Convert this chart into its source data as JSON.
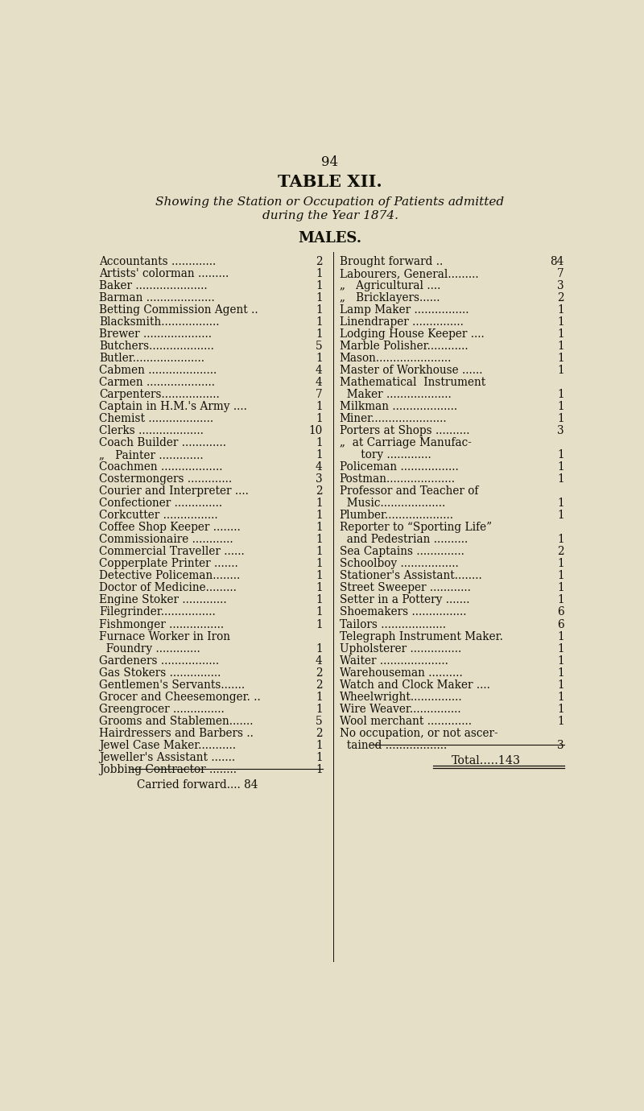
{
  "page_number": "94",
  "title": "TABLE XII.",
  "subtitle_line1": "Showing the Station or Occupation of Patients admitted",
  "subtitle_line2": "during the Year 1874.",
  "section": "MALES.",
  "bg_color": "#e6dfc8",
  "text_color": "#111008",
  "left_column": [
    [
      "Accountants .............",
      "2"
    ],
    [
      "Artists' colorman .........",
      "1"
    ],
    [
      "Baker .....................",
      "1"
    ],
    [
      "Barman ....................",
      "1"
    ],
    [
      "Betting Commission Agent ..",
      "1"
    ],
    [
      "Blacksmith.................",
      "1"
    ],
    [
      "Brewer ....................",
      "1"
    ],
    [
      "Butchers...................",
      "5"
    ],
    [
      "Butler.....................",
      "1"
    ],
    [
      "Cabmen ....................",
      "4"
    ],
    [
      "Carmen ....................",
      "4"
    ],
    [
      "Carpenters.................",
      "7"
    ],
    [
      "Captain in H.M.'s Army ....",
      "1"
    ],
    [
      "Chemist ...................",
      "1"
    ],
    [
      "Clerks ................... ",
      "10"
    ],
    [
      "Coach Builder .............",
      "1"
    ],
    [
      "„   Painter .............",
      "1"
    ],
    [
      "Coachmen ..................",
      "4"
    ],
    [
      "Costermongers .............",
      "3"
    ],
    [
      "Courier and Interpreter ....",
      "2"
    ],
    [
      "Confectioner ..............",
      "1"
    ],
    [
      "Corkcutter ................",
      "1"
    ],
    [
      "Coffee Shop Keeper ........",
      "1"
    ],
    [
      "Commissionaire ............",
      "1"
    ],
    [
      "Commercial Traveller ......",
      "1"
    ],
    [
      "Copperplate Printer .......",
      "1"
    ],
    [
      "Detective Policeman........",
      "1"
    ],
    [
      "Doctor of Medicine.........",
      "1"
    ],
    [
      "Engine Stoker .............",
      "1"
    ],
    [
      "Filegrinder................",
      "1"
    ],
    [
      "Fishmonger ................",
      "1"
    ],
    [
      "Furnace Worker in Iron",
      ""
    ],
    [
      "  Foundry .............",
      "1"
    ],
    [
      "Gardeners .................",
      "4"
    ],
    [
      "Gas Stokers ...............",
      "2"
    ],
    [
      "Gentlemen's Servants.......",
      "2"
    ],
    [
      "Grocer and Cheesemonger. ..",
      "1"
    ],
    [
      "Greengrocer ...............",
      "1"
    ],
    [
      "Grooms and Stablemen.......",
      "5"
    ],
    [
      "Hairdressers and Barbers ..",
      "2"
    ],
    [
      "Jewel Case Maker...........",
      "1"
    ],
    [
      "Jeweller's Assistant .......",
      "1"
    ],
    [
      "Jobbing Contractor ........",
      "1"
    ]
  ],
  "left_carried": "Carried forward.... 84",
  "right_column": [
    [
      "Brought forward ..",
      "84"
    ],
    [
      "Labourers, General.........",
      "7"
    ],
    [
      "„   Agricultural ....",
      "3"
    ],
    [
      "„   Bricklayers......",
      "2"
    ],
    [
      "Lamp Maker ................",
      "1"
    ],
    [
      "Linendraper ...............",
      "1"
    ],
    [
      "Lodging House Keeper ....",
      "1"
    ],
    [
      "Marble Polisher............",
      "1"
    ],
    [
      "Mason......................",
      "1"
    ],
    [
      "Master of Workhouse ......",
      "1"
    ],
    [
      "Mathematical  Instrument",
      ""
    ],
    [
      "  Maker ...................",
      "1"
    ],
    [
      "Milkman ...................",
      "1"
    ],
    [
      "Miner......................",
      "1"
    ],
    [
      "Porters at Shops ..........",
      "3"
    ],
    [
      "„  at Carriage Manufac-",
      ""
    ],
    [
      "      tory .............",
      "1"
    ],
    [
      "Policeman .................",
      "1"
    ],
    [
      "Postman....................",
      "1"
    ],
    [
      "Professor and Teacher of",
      ""
    ],
    [
      "  Music...................",
      "1"
    ],
    [
      "Plumber....................",
      "1"
    ],
    [
      "Reporter to “Sporting Life”",
      ""
    ],
    [
      "  and Pedestrian ..........",
      "1"
    ],
    [
      "Sea Captains ..............",
      "2"
    ],
    [
      "Schoolboy .................",
      "1"
    ],
    [
      "Stationer's Assistant........",
      "1"
    ],
    [
      "Street Sweeper ............",
      "1"
    ],
    [
      "Setter in a Pottery .......",
      "1"
    ],
    [
      "Shoemakers ................",
      "6"
    ],
    [
      "Tailors ...................",
      "6"
    ],
    [
      "Telegraph Instrument Maker.",
      "1"
    ],
    [
      "Upholsterer ...............",
      "1"
    ],
    [
      "Waiter ....................",
      "1"
    ],
    [
      "Warehouseman ..........",
      "1"
    ],
    [
      "Watch and Clock Maker ....",
      "1"
    ],
    [
      "Wheelwright...............",
      "1"
    ],
    [
      "Wire Weaver...............",
      "1"
    ],
    [
      "Wool merchant .............",
      "1"
    ],
    [
      "No occupation, or not ascer-",
      ""
    ],
    [
      "  tained ..................",
      "3"
    ]
  ],
  "right_total": "Total.....143",
  "page_num_fontsize": 12,
  "title_fontsize": 15,
  "subtitle_fontsize": 11,
  "section_fontsize": 13,
  "body_fontsize": 9.8
}
